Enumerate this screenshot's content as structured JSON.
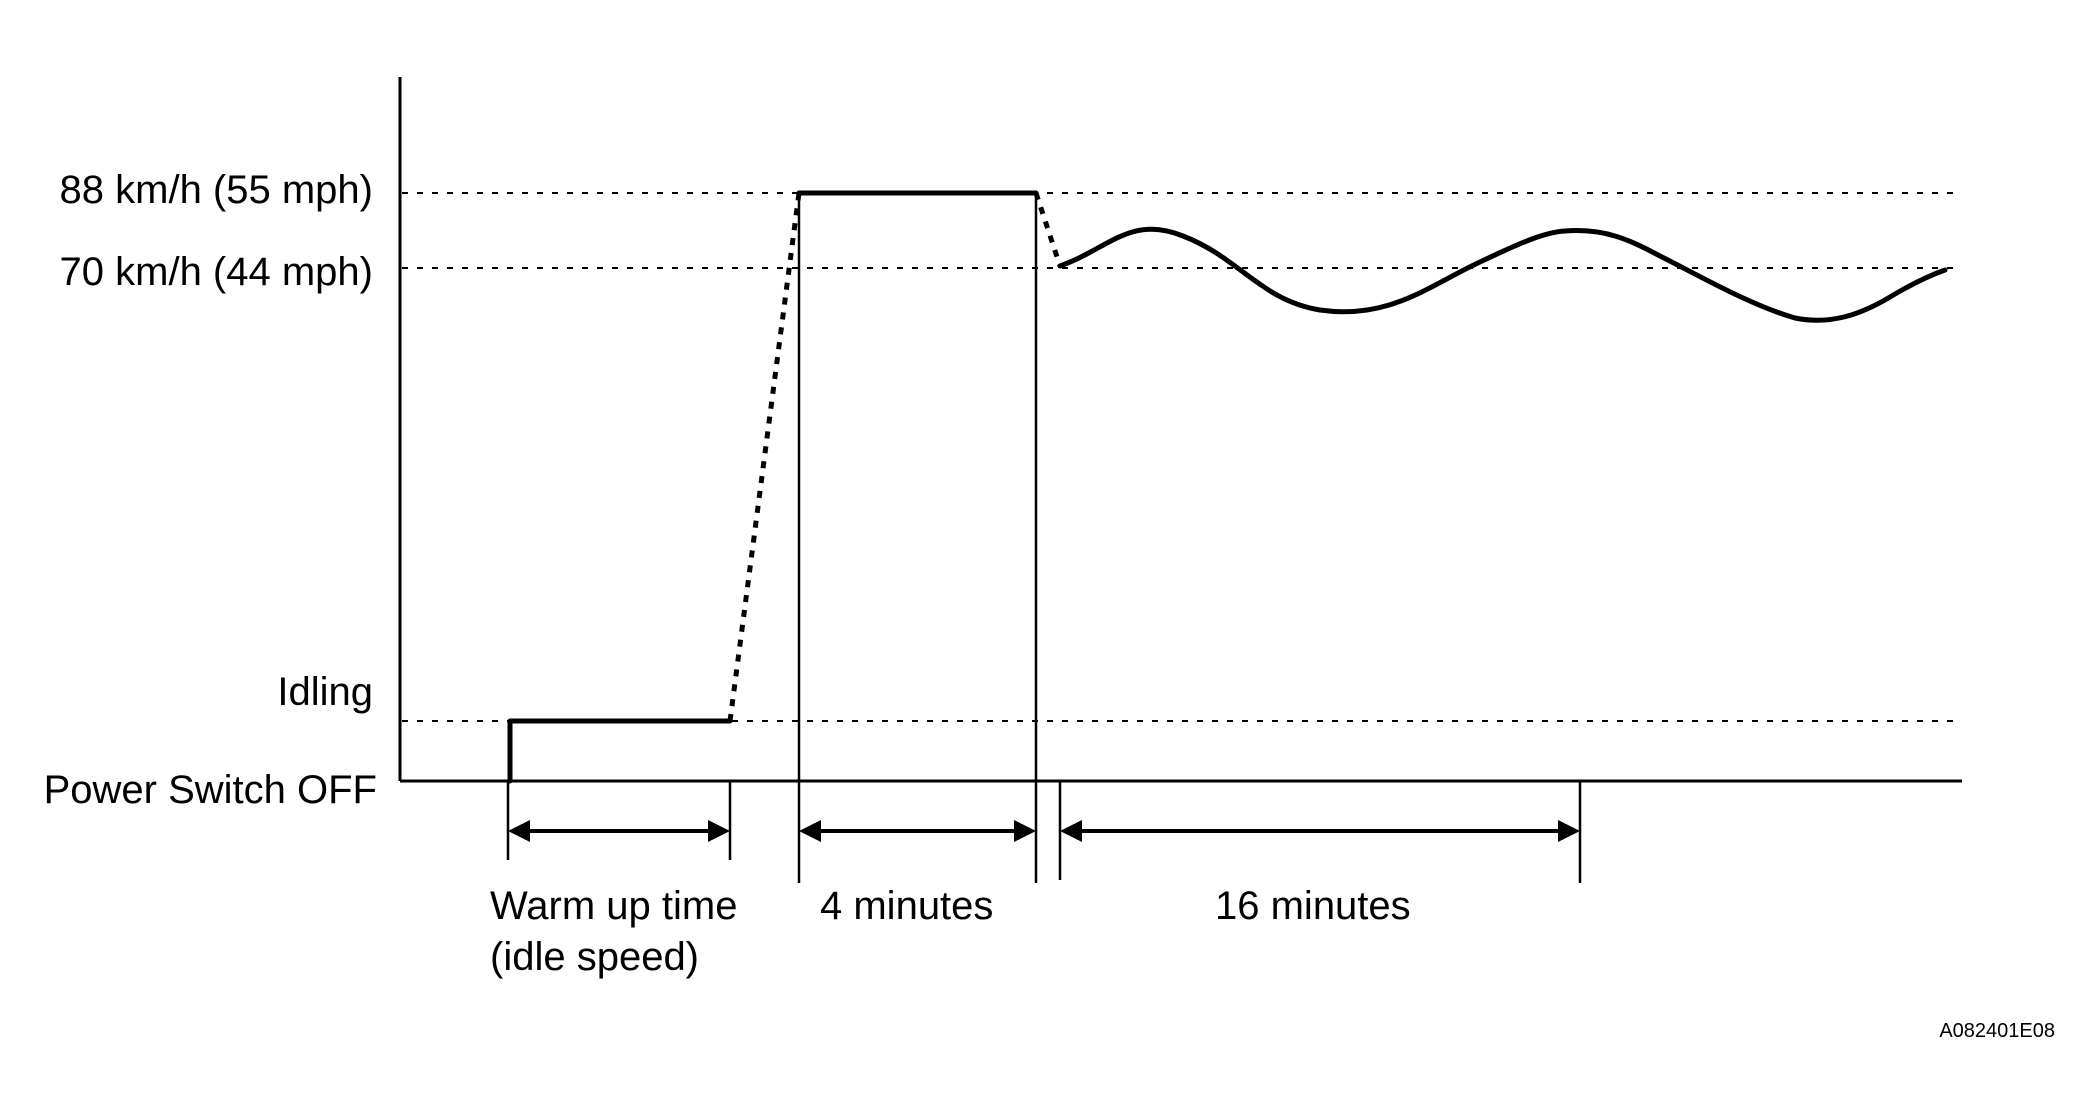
{
  "levels": {
    "high": "88 km/h (55 mph)",
    "mid": "70 km/h (44 mph)",
    "idle": "Idling",
    "off": "Power Switch OFF"
  },
  "phases": {
    "warmup_line1": "Warm up time",
    "warmup_line2": "(idle speed)",
    "steady": "4 minutes",
    "cruise": "16 minutes"
  },
  "reference_code": "A082401E08"
}
